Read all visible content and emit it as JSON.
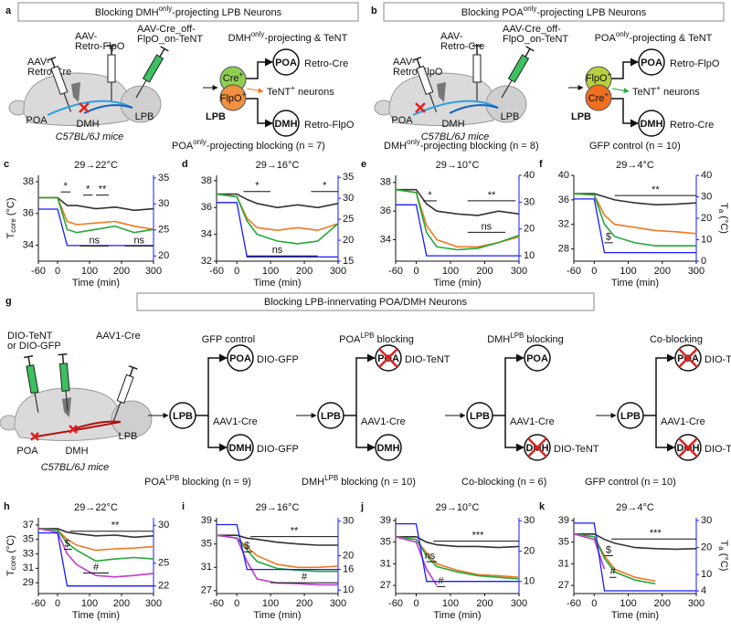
{
  "panels": {
    "a": {
      "label": "a",
      "title": [
        "Blocking DMH",
        "only",
        "-projecting LPB Neurons"
      ],
      "syringes": [
        [
          "AAV-",
          "Retro-Cre"
        ],
        [
          "AAV-",
          "Retro-FlpO"
        ],
        [
          "AAV-Cre_off-",
          "FlpO_on-TeNT"
        ]
      ],
      "regions": [
        "POA",
        "DMH",
        "LPB"
      ],
      "mouse": "C57BL/6J mice",
      "heading": [
        "DMH",
        "only",
        "-projecting & TeNT"
      ],
      "top_cell": [
        "Cre",
        "+"
      ],
      "bottom_cell": [
        "FlpO",
        "+"
      ],
      "tent": [
        "TeNT",
        "+",
        " neurons"
      ],
      "source": "LPB",
      "targets": [
        {
          "name": "POA",
          "vector": "Retro-Cre"
        },
        {
          "name": "DMH",
          "vector": "Retro-FlpO"
        }
      ]
    },
    "b": {
      "label": "b",
      "title": [
        "Blocking POA",
        "only",
        "-projecting LPB Neurons"
      ],
      "syringes": [
        [
          "AAV-",
          "Retro-FlpO"
        ],
        [
          "AAV-",
          "Retro-Cre"
        ],
        [
          "AAV-Cre_off-",
          "FlpO_on-TeNT"
        ]
      ],
      "regions": [
        "POA",
        "DMH",
        "LPB"
      ],
      "mouse": "C57BL/6J mice",
      "heading": [
        "POA",
        "only",
        "-projecting & TeNT"
      ],
      "top_cell": [
        "FlpO",
        "+"
      ],
      "bottom_cell": [
        "Cre",
        "+"
      ],
      "tent": [
        "TeNT",
        "+",
        " neurons"
      ],
      "source": "LPB",
      "targets": [
        {
          "name": "POA",
          "vector": "Retro-FlpO"
        },
        {
          "name": "DMH",
          "vector": "Retro-Cre"
        }
      ]
    },
    "legend1": [
      {
        "parts": [
          "POA",
          "only",
          "-projecting blocking (n = 7)"
        ],
        "color": "#22a83a"
      },
      {
        "parts": [
          "DMH",
          "only",
          "-projecting blocking (n = 8)"
        ],
        "color": "#f07820"
      },
      {
        "parts": [
          "GFP control (n = 10)"
        ],
        "color": "#111111"
      }
    ],
    "g": {
      "label": "g",
      "title": "Blocking LPB-innervating POA/DMH Neurons",
      "syringes": [
        [
          "DIO-TeNT",
          "or DIO-GFP"
        ],
        [
          "AAV1-Cre"
        ]
      ],
      "regions": [
        "POA",
        "DMH",
        "LPB"
      ],
      "mouse": "C57BL/6J mice",
      "circuits": [
        {
          "heading": [
            "GFP control"
          ],
          "color": "#111111",
          "source": "LPB",
          "vector": "AAV1-Cre",
          "targets": [
            {
              "name": "POA",
              "vector": "DIO-GFP",
              "blocked": false
            },
            {
              "name": "DMH",
              "vector": "DIO-GFP",
              "blocked": false
            }
          ]
        },
        {
          "heading": [
            "POA",
            "LPB",
            " blocking"
          ],
          "color": "#22a83a",
          "source": "LPB",
          "vector": "AAV1-Cre",
          "targets": [
            {
              "name": "POA",
              "vector": "DIO-TeNT",
              "blocked": true
            },
            {
              "name": "DMH",
              "blocked": false
            }
          ]
        },
        {
          "heading": [
            "DMH",
            "LPB",
            " blocking"
          ],
          "color": "#f07820",
          "source": "LPB",
          "vector": "AAV1-Cre",
          "targets": [
            {
              "name": "POA",
              "blocked": false
            },
            {
              "name": "DMH",
              "vector": "DIO-TeNT",
              "blocked": true
            }
          ]
        },
        {
          "heading": [
            "Co-blocking"
          ],
          "color": "#c03cd0",
          "source": "LPB",
          "vector": "AAV1-Cre",
          "targets": [
            {
              "name": "POA",
              "vector": "DIO-TeNT",
              "blocked": true
            },
            {
              "name": "DMH",
              "vector": "DIO-TeNT",
              "blocked": true
            }
          ]
        }
      ]
    },
    "legend2": [
      {
        "parts": [
          "POA",
          "LPB",
          " blocking (n = 9)"
        ],
        "color": "#22a83a"
      },
      {
        "parts": [
          "DMH",
          "LPB",
          " blocking (n = 10)"
        ],
        "color": "#f07820"
      },
      {
        "parts": [
          "Co-blocking (n = 6)"
        ],
        "color": "#c03cd0"
      },
      {
        "parts": [
          "GFP control (n = 10)"
        ],
        "color": "#111111"
      }
    ]
  },
  "chart_data": [
    {
      "type": "line",
      "label": "c",
      "title": "29→22°C",
      "xlabel": "Time (min)",
      "ylabel": [
        "T",
        "core",
        " (°C)"
      ],
      "x": [
        -60,
        0,
        30,
        60,
        120,
        180,
        240,
        300
      ],
      "xlim": [
        -60,
        300
      ],
      "xticks": [
        -60,
        0,
        100,
        200,
        300
      ],
      "ylim": [
        33,
        38.4
      ],
      "yticks": [
        34,
        36,
        38
      ],
      "y2lim": [
        19,
        35.5
      ],
      "y2ticks": [
        20,
        25,
        30,
        35
      ],
      "series": [
        {
          "color": "#333333",
          "values": [
            37,
            37,
            36.5,
            36.5,
            36.3,
            36.4,
            36.2,
            36.3
          ]
        },
        {
          "color": "#f07820",
          "values": [
            37,
            37,
            35.5,
            35.3,
            35.4,
            35.5,
            35.2,
            35
          ]
        },
        {
          "color": "#22a83a",
          "values": [
            37,
            37,
            35,
            34.8,
            35,
            35.2,
            34.8,
            35
          ]
        },
        {
          "color": "#1a1aff",
          "axis": "y2",
          "values": [
            29,
            29,
            22,
            22,
            22,
            22,
            22,
            22
          ]
        }
      ],
      "annotations": [
        "*",
        "*",
        "**",
        "ns",
        "ns"
      ]
    },
    {
      "type": "line",
      "label": "d",
      "title": "29→16°C",
      "xlabel": "Time (min)",
      "x": [
        -60,
        0,
        30,
        60,
        120,
        180,
        240,
        300
      ],
      "xlim": [
        -60,
        300
      ],
      "xticks": [
        -60,
        0,
        100,
        200,
        300
      ],
      "ylim": [
        32,
        38.4
      ],
      "yticks": [
        32,
        34,
        36,
        38
      ],
      "y2lim": [
        15,
        35.5
      ],
      "y2ticks": [
        15,
        20,
        25,
        30,
        35
      ],
      "series": [
        {
          "color": "#333333",
          "values": [
            37,
            37,
            36.6,
            36.3,
            36,
            36.2,
            36,
            36.3
          ]
        },
        {
          "color": "#f07820",
          "values": [
            37,
            36.8,
            35.2,
            34.5,
            34.3,
            34.5,
            34.3,
            34.8
          ]
        },
        {
          "color": "#22a83a",
          "values": [
            37,
            36.8,
            35,
            34,
            33.5,
            33.3,
            33.5,
            34.8
          ]
        },
        {
          "color": "#1a1aff",
          "axis": "y2",
          "values": [
            29,
            29,
            16,
            16,
            16,
            16,
            16,
            16
          ]
        }
      ],
      "annotations": [
        "*",
        "*",
        "ns"
      ]
    },
    {
      "type": "line",
      "label": "e",
      "title": "29→10°C",
      "xlabel": "Time (min)",
      "x": [
        -60,
        0,
        30,
        60,
        120,
        180,
        240,
        300
      ],
      "xlim": [
        -60,
        300
      ],
      "xticks": [
        -60,
        0,
        100,
        200,
        300
      ],
      "ylim": [
        32.5,
        38.5
      ],
      "yticks": [
        34,
        36,
        38
      ],
      "y2lim": [
        8,
        40
      ],
      "y2ticks": [
        10,
        20,
        30,
        40
      ],
      "series": [
        {
          "color": "#333333",
          "values": [
            37.5,
            37.5,
            36.5,
            36,
            35.8,
            35.7,
            36,
            35.8
          ]
        },
        {
          "color": "#f07820",
          "values": [
            37.5,
            37.3,
            35,
            34,
            33.5,
            33.5,
            33.8,
            34.2
          ]
        },
        {
          "color": "#22a83a",
          "values": [
            37.5,
            37.3,
            34.5,
            33.5,
            33.3,
            33.4,
            33.8,
            34.3
          ]
        },
        {
          "color": "#1a1aff",
          "axis": "y2",
          "values": [
            29,
            29,
            10,
            10,
            10,
            10,
            10,
            10
          ]
        }
      ],
      "annotations": [
        "*",
        "**",
        "ns"
      ]
    },
    {
      "type": "line",
      "label": "f",
      "title": "29→4°C",
      "xlabel": "Time (min)",
      "y2label": [
        "T",
        "a",
        " (°C)"
      ],
      "x": [
        -60,
        0,
        30,
        60,
        120,
        180,
        240,
        300
      ],
      "xlim": [
        -60,
        300
      ],
      "xticks": [
        -60,
        0,
        100,
        200,
        300
      ],
      "ylim": [
        26,
        40
      ],
      "yticks": [
        28,
        32,
        36,
        40
      ],
      "y2lim": [
        0,
        40
      ],
      "y2ticks": [
        0,
        10,
        20,
        30,
        40
      ],
      "series": [
        {
          "color": "#333333",
          "values": [
            37,
            37,
            36.5,
            36,
            35.5,
            35.2,
            35.3,
            35.5
          ]
        },
        {
          "color": "#f07820",
          "values": [
            37,
            36.8,
            33.5,
            32,
            31.5,
            31,
            30.8,
            30.5
          ]
        },
        {
          "color": "#22a83a",
          "values": [
            37,
            36.8,
            32,
            30,
            29,
            28.5,
            28.5,
            28.5
          ]
        },
        {
          "color": "#1a1aff",
          "axis": "y2",
          "values": [
            29,
            29,
            4,
            4,
            4,
            4,
            4,
            4
          ]
        }
      ],
      "annotations": [
        "**",
        "$"
      ]
    },
    {
      "type": "line",
      "label": "h",
      "title": "29→22°C",
      "xlabel": "Time (min)",
      "ylabel": [
        "T",
        "core",
        " (°C)"
      ],
      "x": [
        -60,
        0,
        30,
        60,
        120,
        180,
        240,
        300
      ],
      "xlim": [
        -60,
        300
      ],
      "xticks": [
        -60,
        0,
        100,
        200,
        300
      ],
      "ylim": [
        27.5,
        38
      ],
      "yticks": [
        29,
        31,
        33,
        35,
        37
      ],
      "y2lim": [
        21,
        31
      ],
      "y2ticks": [
        22,
        25,
        30
      ],
      "series": [
        {
          "color": "#333333",
          "values": [
            36.5,
            36.5,
            36,
            35.8,
            35.5,
            35.6,
            35.3,
            35.5
          ]
        },
        {
          "color": "#f07820",
          "values": [
            36.5,
            36.3,
            35,
            34.2,
            33.5,
            33.7,
            33.8,
            34
          ]
        },
        {
          "color": "#22a83a",
          "values": [
            36.5,
            36.3,
            34.5,
            33.5,
            32,
            32.3,
            32.5,
            32.3
          ]
        },
        {
          "color": "#c03cd0",
          "values": [
            36.5,
            36,
            33,
            31.5,
            30,
            29.8,
            30,
            30.3
          ]
        },
        {
          "color": "#1a1aff",
          "axis": "y2",
          "values": [
            29,
            29,
            22,
            22,
            22,
            22,
            22,
            22
          ]
        }
      ],
      "annotations": [
        "**",
        "$",
        "#"
      ]
    },
    {
      "type": "line",
      "label": "i",
      "title": "29→16°C",
      "xlabel": "Time (min)",
      "x": [
        -60,
        0,
        30,
        60,
        120,
        180,
        240,
        300
      ],
      "xlim": [
        -60,
        300
      ],
      "xticks": [
        -60,
        0,
        100,
        200,
        300
      ],
      "ylim": [
        26.5,
        39.5
      ],
      "yticks": [
        27,
        31,
        35,
        39
      ],
      "y2lim": [
        9,
        31
      ],
      "y2ticks": [
        10,
        16,
        20,
        30
      ],
      "series": [
        {
          "color": "#333333",
          "values": [
            36.5,
            36.5,
            36,
            35.8,
            35.3,
            35,
            34.8,
            34.8
          ]
        },
        {
          "color": "#f07820",
          "values": [
            36.5,
            36,
            34.5,
            33,
            31.5,
            31,
            31,
            31.2
          ]
        },
        {
          "color": "#22a83a",
          "values": [
            36.5,
            36,
            34,
            32,
            30.8,
            30.5,
            30.3,
            30.3
          ]
        },
        {
          "color": "#c03cd0",
          "values": [
            36.5,
            36,
            32,
            29,
            28.3,
            28.2,
            28,
            28
          ]
        },
        {
          "color": "#1a1aff",
          "axis": "y2",
          "values": [
            29,
            29,
            16,
            16,
            16,
            16,
            16,
            16
          ]
        }
      ],
      "annotations": [
        "**",
        "$",
        "#"
      ]
    },
    {
      "type": "line",
      "label": "j",
      "title": "29→10°C",
      "xlabel": "Time (min)",
      "x": [
        -60,
        0,
        30,
        60,
        120,
        180,
        240,
        300
      ],
      "xlim": [
        -60,
        300
      ],
      "xticks": [
        -60,
        0,
        100,
        200,
        300
      ],
      "ylim": [
        25.5,
        39.5
      ],
      "yticks": [
        27,
        31,
        35,
        39
      ],
      "y2lim": [
        6,
        31
      ],
      "y2ticks": [
        10,
        20,
        30
      ],
      "series": [
        {
          "color": "#333333",
          "values": [
            36,
            36,
            35,
            34.5,
            34.2,
            34.2,
            34,
            34.2
          ]
        },
        {
          "color": "#f07820",
          "values": [
            36,
            35.5,
            33,
            31,
            29.8,
            29,
            28.8,
            28.5
          ]
        },
        {
          "color": "#22a83a",
          "values": [
            36,
            35.5,
            32.5,
            30.5,
            29.5,
            28.8,
            28.5,
            28.2
          ]
        },
        {
          "color": "#c03cd0",
          "values": [
            36,
            35,
            30,
            27,
            null,
            null,
            null,
            null
          ]
        },
        {
          "color": "#1a1aff",
          "axis": "y2",
          "values": [
            29,
            29,
            10,
            10,
            10,
            10,
            10,
            10
          ]
        }
      ],
      "annotations": [
        "***",
        "ns",
        "#"
      ]
    },
    {
      "type": "line",
      "label": "k",
      "title": "29→4°C",
      "xlabel": "Time (min)",
      "y2label": [
        "T",
        "a",
        " (°C)"
      ],
      "x": [
        -60,
        0,
        30,
        60,
        120,
        180,
        240,
        300
      ],
      "xlim": [
        -60,
        300
      ],
      "xticks": [
        -60,
        0,
        100,
        200,
        300
      ],
      "ylim": [
        25.5,
        39.5
      ],
      "yticks": [
        27,
        31,
        35,
        39
      ],
      "y2lim": [
        3,
        31
      ],
      "y2ticks": [
        4,
        10,
        20,
        30
      ],
      "series": [
        {
          "color": "#333333",
          "values": [
            36.5,
            36.5,
            35.5,
            34.8,
            34,
            33.8,
            33.7,
            33.8
          ]
        },
        {
          "color": "#f07820",
          "values": [
            36.5,
            36,
            32.5,
            30,
            28.5,
            27.8,
            null,
            null
          ]
        },
        {
          "color": "#22a83a",
          "values": [
            36.5,
            36,
            32,
            29.5,
            28,
            27.3,
            null,
            null
          ]
        },
        {
          "color": "#c03cd0",
          "values": [
            36.5,
            35.5,
            30,
            null,
            null,
            null,
            null,
            null
          ]
        },
        {
          "color": "#1a1aff",
          "axis": "y2",
          "values": [
            29,
            29,
            4,
            4,
            4,
            4,
            4,
            4
          ]
        }
      ],
      "annotations": [
        "***",
        "$",
        "#"
      ]
    }
  ]
}
